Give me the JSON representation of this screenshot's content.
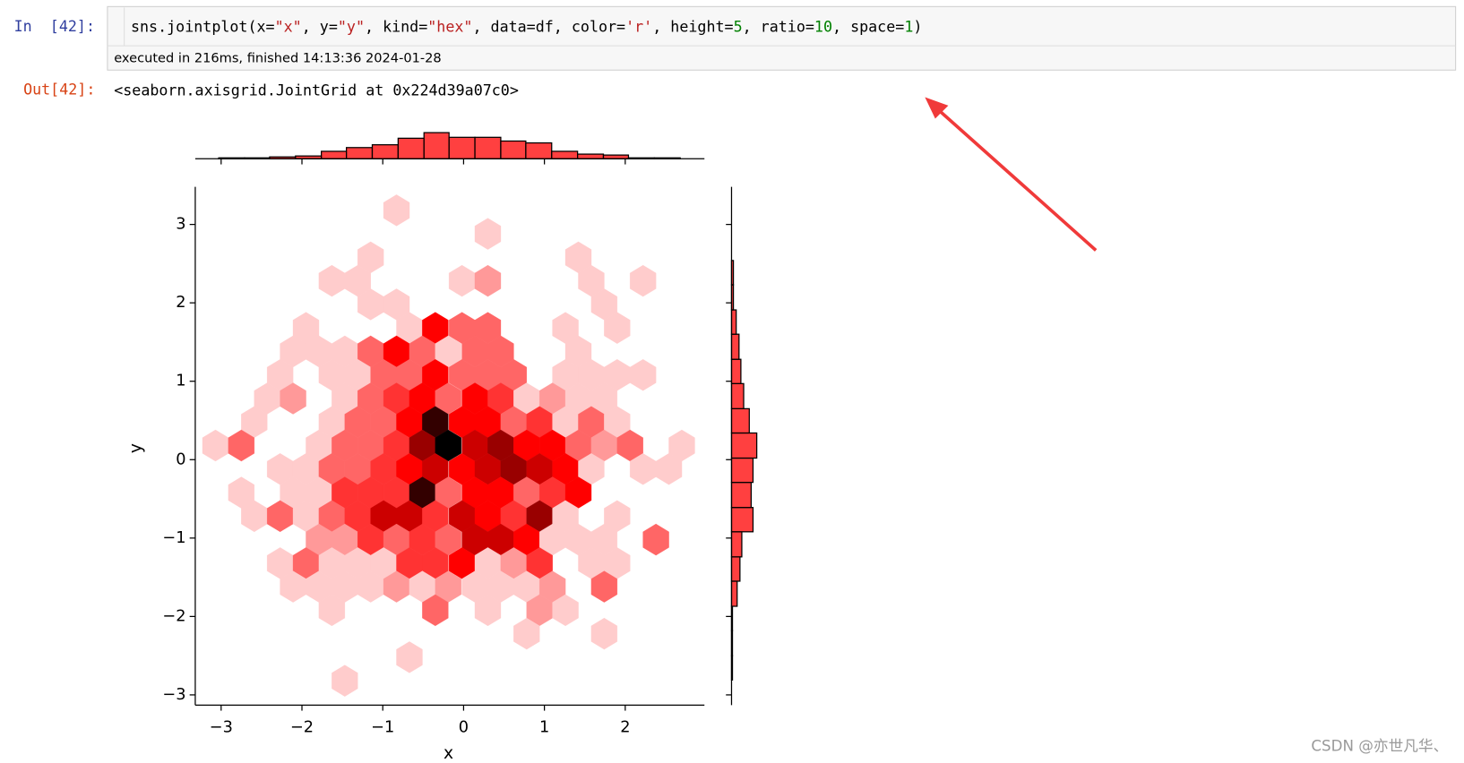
{
  "cell": {
    "in_prompt": "In  [42]:",
    "code_tokens": [
      {
        "text": "sns.jointplot(x=",
        "color": "#000000"
      },
      {
        "text": "\"x\"",
        "color": "#ba2121"
      },
      {
        "text": ", y=",
        "color": "#000000"
      },
      {
        "text": "\"y\"",
        "color": "#ba2121"
      },
      {
        "text": ", kind=",
        "color": "#000000"
      },
      {
        "text": "\"hex\"",
        "color": "#ba2121"
      },
      {
        "text": ", data=df, color=",
        "color": "#000000"
      },
      {
        "text": "'r'",
        "color": "#ba2121"
      },
      {
        "text": ", height=",
        "color": "#000000"
      },
      {
        "text": "5",
        "color": "#008000"
      },
      {
        "text": ", ratio=",
        "color": "#000000"
      },
      {
        "text": "10",
        "color": "#008000"
      },
      {
        "text": ", space=",
        "color": "#000000"
      },
      {
        "text": "1",
        "color": "#008000"
      },
      {
        "text": ")",
        "color": "#000000"
      }
    ],
    "execution_info": "executed in 216ms, finished 14:13:36 2024-01-28",
    "out_prompt": "Out[42]:",
    "output_text": "<seaborn.axisgrid.JointGrid at 0x224d39a07c0>"
  },
  "chart_data": [
    {
      "type": "hexbin",
      "color": "#ff0000",
      "xlabel": "x",
      "ylabel": "y",
      "xlim": [
        -3.32,
        2.98
      ],
      "ylim": [
        -3.13,
        3.48
      ],
      "xticks": [
        {
          "value": -3,
          "label": "−3"
        },
        {
          "value": -2,
          "label": "−2"
        },
        {
          "value": -1,
          "label": "−1"
        },
        0,
        1,
        2
      ],
      "yticks": [
        {
          "value": -3,
          "label": "−3"
        },
        {
          "value": -2,
          "label": "−2"
        },
        {
          "value": -1,
          "label": "−1"
        },
        0,
        1,
        2,
        3
      ],
      "x": [
        -0.83,
        0.3,
        -1.15,
        1.42,
        -1.63,
        -1.31,
        -0.02,
        0.3,
        1.58,
        2.22,
        -1.15,
        -0.83,
        1.74,
        -1.95,
        -0.67,
        -0.35,
        -0.02,
        0.3,
        1.26,
        1.9,
        -2.11,
        -1.79,
        -1.47,
        -1.15,
        -0.83,
        -0.51,
        -0.19,
        0.14,
        0.46,
        1.42,
        -2.27,
        -1.63,
        -1.31,
        -0.99,
        -0.67,
        -0.35,
        -0.02,
        0.3,
        0.62,
        1.26,
        1.58,
        1.9,
        2.22,
        -2.43,
        -2.11,
        -1.47,
        -1.15,
        -0.83,
        -0.51,
        -0.19,
        0.14,
        0.46,
        0.78,
        1.1,
        1.42,
        1.74,
        -2.59,
        -1.63,
        -1.31,
        -0.99,
        -0.67,
        -0.35,
        -0.02,
        0.3,
        0.62,
        0.94,
        1.26,
        1.58,
        1.9,
        -3.07,
        -2.75,
        -1.79,
        -1.47,
        -1.15,
        -0.83,
        -0.51,
        -0.19,
        0.14,
        0.46,
        0.78,
        1.1,
        1.42,
        1.74,
        2.06,
        2.7,
        -2.27,
        -1.95,
        -1.63,
        -1.31,
        -0.99,
        -0.67,
        -0.35,
        -0.02,
        0.3,
        0.62,
        0.94,
        1.26,
        1.58,
        2.22,
        2.54,
        -2.75,
        -2.11,
        -1.79,
        -1.47,
        -1.15,
        -0.83,
        -0.51,
        -0.19,
        0.14,
        0.46,
        0.78,
        1.1,
        1.42,
        -2.59,
        -2.27,
        -1.95,
        -1.63,
        -1.31,
        -0.99,
        -0.67,
        -0.35,
        -0.02,
        0.3,
        0.62,
        0.94,
        1.26,
        1.9,
        -1.79,
        -1.47,
        -1.15,
        -0.83,
        -0.51,
        -0.19,
        0.14,
        0.46,
        0.78,
        1.1,
        1.42,
        1.74,
        2.38,
        -2.27,
        -1.95,
        -1.63,
        -1.31,
        -0.99,
        -0.67,
        -0.35,
        -0.02,
        0.3,
        0.62,
        0.94,
        1.58,
        1.9,
        -2.11,
        -1.79,
        -1.47,
        -1.15,
        -0.83,
        -0.51,
        -0.19,
        0.14,
        0.46,
        0.78,
        1.1,
        1.74,
        -1.63,
        -0.35,
        0.3,
        0.94,
        1.26,
        0.78,
        1.74,
        -0.67,
        -1.47
      ],
      "y": [
        3.18,
        2.88,
        2.58,
        2.58,
        2.28,
        2.28,
        2.28,
        2.28,
        2.28,
        2.28,
        1.98,
        1.98,
        1.98,
        1.68,
        1.68,
        1.68,
        1.68,
        1.68,
        1.68,
        1.68,
        1.38,
        1.38,
        1.38,
        1.38,
        1.38,
        1.38,
        1.38,
        1.38,
        1.38,
        1.38,
        1.08,
        1.08,
        1.08,
        1.08,
        1.08,
        1.08,
        1.08,
        1.08,
        1.08,
        1.08,
        1.08,
        1.08,
        1.08,
        0.78,
        0.78,
        0.78,
        0.78,
        0.78,
        0.78,
        0.78,
        0.78,
        0.78,
        0.78,
        0.78,
        0.78,
        0.78,
        0.48,
        0.48,
        0.48,
        0.48,
        0.48,
        0.48,
        0.48,
        0.48,
        0.48,
        0.48,
        0.48,
        0.48,
        0.48,
        0.18,
        0.18,
        0.18,
        0.18,
        0.18,
        0.18,
        0.18,
        0.18,
        0.18,
        0.18,
        0.18,
        0.18,
        0.18,
        0.18,
        0.18,
        0.18,
        -0.12,
        -0.12,
        -0.12,
        -0.12,
        -0.12,
        -0.12,
        -0.12,
        -0.12,
        -0.12,
        -0.12,
        -0.12,
        -0.12,
        -0.12,
        -0.12,
        -0.12,
        -0.42,
        -0.42,
        -0.42,
        -0.42,
        -0.42,
        -0.42,
        -0.42,
        -0.42,
        -0.42,
        -0.42,
        -0.42,
        -0.42,
        -0.42,
        -0.72,
        -0.72,
        -0.72,
        -0.72,
        -0.72,
        -0.72,
        -0.72,
        -0.72,
        -0.72,
        -0.72,
        -0.72,
        -0.72,
        -0.72,
        -0.72,
        -1.02,
        -1.02,
        -1.02,
        -1.02,
        -1.02,
        -1.02,
        -1.02,
        -1.02,
        -1.02,
        -1.02,
        -1.02,
        -1.02,
        -1.02,
        -1.32,
        -1.32,
        -1.32,
        -1.32,
        -1.32,
        -1.32,
        -1.32,
        -1.32,
        -1.32,
        -1.32,
        -1.32,
        -1.32,
        -1.32,
        -1.62,
        -1.62,
        -1.62,
        -1.62,
        -1.62,
        -1.62,
        -1.62,
        -1.62,
        -1.62,
        -1.62,
        -1.62,
        -1.62,
        -1.92,
        -1.92,
        -1.92,
        -1.92,
        -1.92,
        -2.22,
        -2.22,
        -2.52,
        -2.82
      ],
      "values": [
        1,
        1,
        1,
        1,
        1,
        1,
        1,
        2,
        1,
        1,
        1,
        1,
        1,
        1,
        1,
        5,
        3,
        3,
        1,
        1,
        1,
        1,
        1,
        3,
        5,
        3,
        1,
        3,
        3,
        1,
        1,
        1,
        1,
        3,
        3,
        5,
        3,
        3,
        3,
        1,
        1,
        1,
        1,
        1,
        2,
        1,
        3,
        4,
        5,
        3,
        5,
        4,
        1,
        2,
        1,
        1,
        1,
        1,
        3,
        3,
        5,
        9,
        5,
        5,
        3,
        4,
        1,
        3,
        1,
        1,
        3,
        1,
        3,
        3,
        4,
        7,
        10,
        6,
        7,
        5,
        5,
        3,
        2,
        3,
        1,
        1,
        1,
        3,
        3,
        4,
        5,
        6,
        5,
        6,
        7,
        6,
        5,
        1,
        1,
        1,
        1,
        1,
        1,
        4,
        4,
        4,
        9,
        3,
        5,
        5,
        3,
        4,
        5,
        1,
        3,
        1,
        3,
        4,
        6,
        6,
        4,
        6,
        5,
        4,
        7,
        1,
        1,
        2,
        2,
        4,
        3,
        4,
        3,
        6,
        6,
        5,
        1,
        1,
        1,
        3,
        1,
        3,
        1,
        1,
        1,
        4,
        4,
        5,
        1,
        2,
        4,
        1,
        1,
        1,
        1,
        1,
        1,
        2,
        1,
        2,
        1,
        1,
        1,
        2,
        3,
        1,
        3,
        1,
        2,
        1,
        1,
        1,
        1,
        1
      ]
    },
    {
      "type": "histogram",
      "orientation": "vertical",
      "color": "#ff0000",
      "bins": [
        -3.03,
        -2.71,
        -2.4,
        -2.08,
        -1.76,
        -1.45,
        -1.13,
        -0.81,
        -0.49,
        -0.18,
        0.14,
        0.46,
        0.77,
        1.09,
        1.41,
        1.73,
        2.04,
        2.36,
        2.68
      ],
      "values": [
        1,
        1,
        2,
        3,
        8,
        12,
        15,
        22,
        28,
        23,
        23,
        19,
        17,
        8,
        5,
        4,
        1,
        1
      ],
      "ylim": [
        0,
        30
      ]
    },
    {
      "type": "histogram",
      "orientation": "horizontal",
      "color": "#ff0000",
      "bins": [
        -2.81,
        -2.5,
        -2.18,
        -1.87,
        -1.55,
        -1.24,
        -0.92,
        -0.61,
        -0.29,
        0.02,
        0.34,
        0.65,
        0.97,
        1.28,
        1.6,
        1.91,
        2.23,
        2.54
      ],
      "values": [
        1,
        1,
        1,
        6,
        9,
        11,
        23,
        21,
        23,
        27,
        19,
        13,
        10,
        8,
        5,
        2,
        2
      ],
      "xlim": [
        0,
        30
      ]
    }
  ],
  "watermark": "CSDN @亦世凡华、"
}
